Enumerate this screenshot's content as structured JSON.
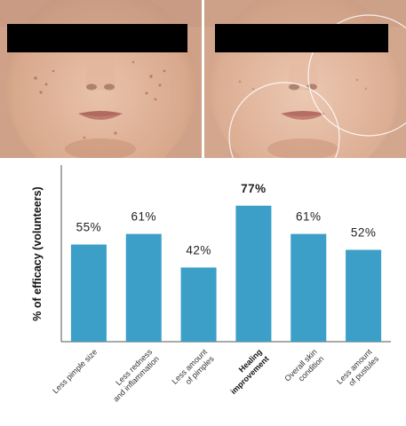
{
  "colors": {
    "bar": "#3b9fc7",
    "axis": "#555555",
    "censor": "#000000"
  },
  "photos": [
    {
      "name": "before",
      "overlay": "none"
    },
    {
      "name": "after",
      "overlay": "highlight-circles"
    }
  ],
  "chart_data": {
    "type": "bar",
    "categories": [
      {
        "lines": [
          "Less pimple size"
        ],
        "bold": false
      },
      {
        "lines": [
          "Less redness",
          "and inflammation"
        ],
        "bold": false
      },
      {
        "lines": [
          "Less amount",
          "of pimples"
        ],
        "bold": false
      },
      {
        "lines": [
          "Healing",
          "improvement"
        ],
        "bold": true
      },
      {
        "lines": [
          "Overall skin",
          "condition"
        ],
        "bold": false
      },
      {
        "lines": [
          "Less amount",
          "of pustules"
        ],
        "bold": false
      }
    ],
    "values": [
      55,
      61,
      42,
      77,
      61,
      52
    ],
    "value_labels": [
      "55%",
      "61%",
      "42%",
      "77%",
      "61%",
      "52%"
    ],
    "ylabel": "% of efficacy (volunteers)",
    "ylim": [
      0,
      100
    ],
    "grid": false,
    "legend": "none"
  }
}
